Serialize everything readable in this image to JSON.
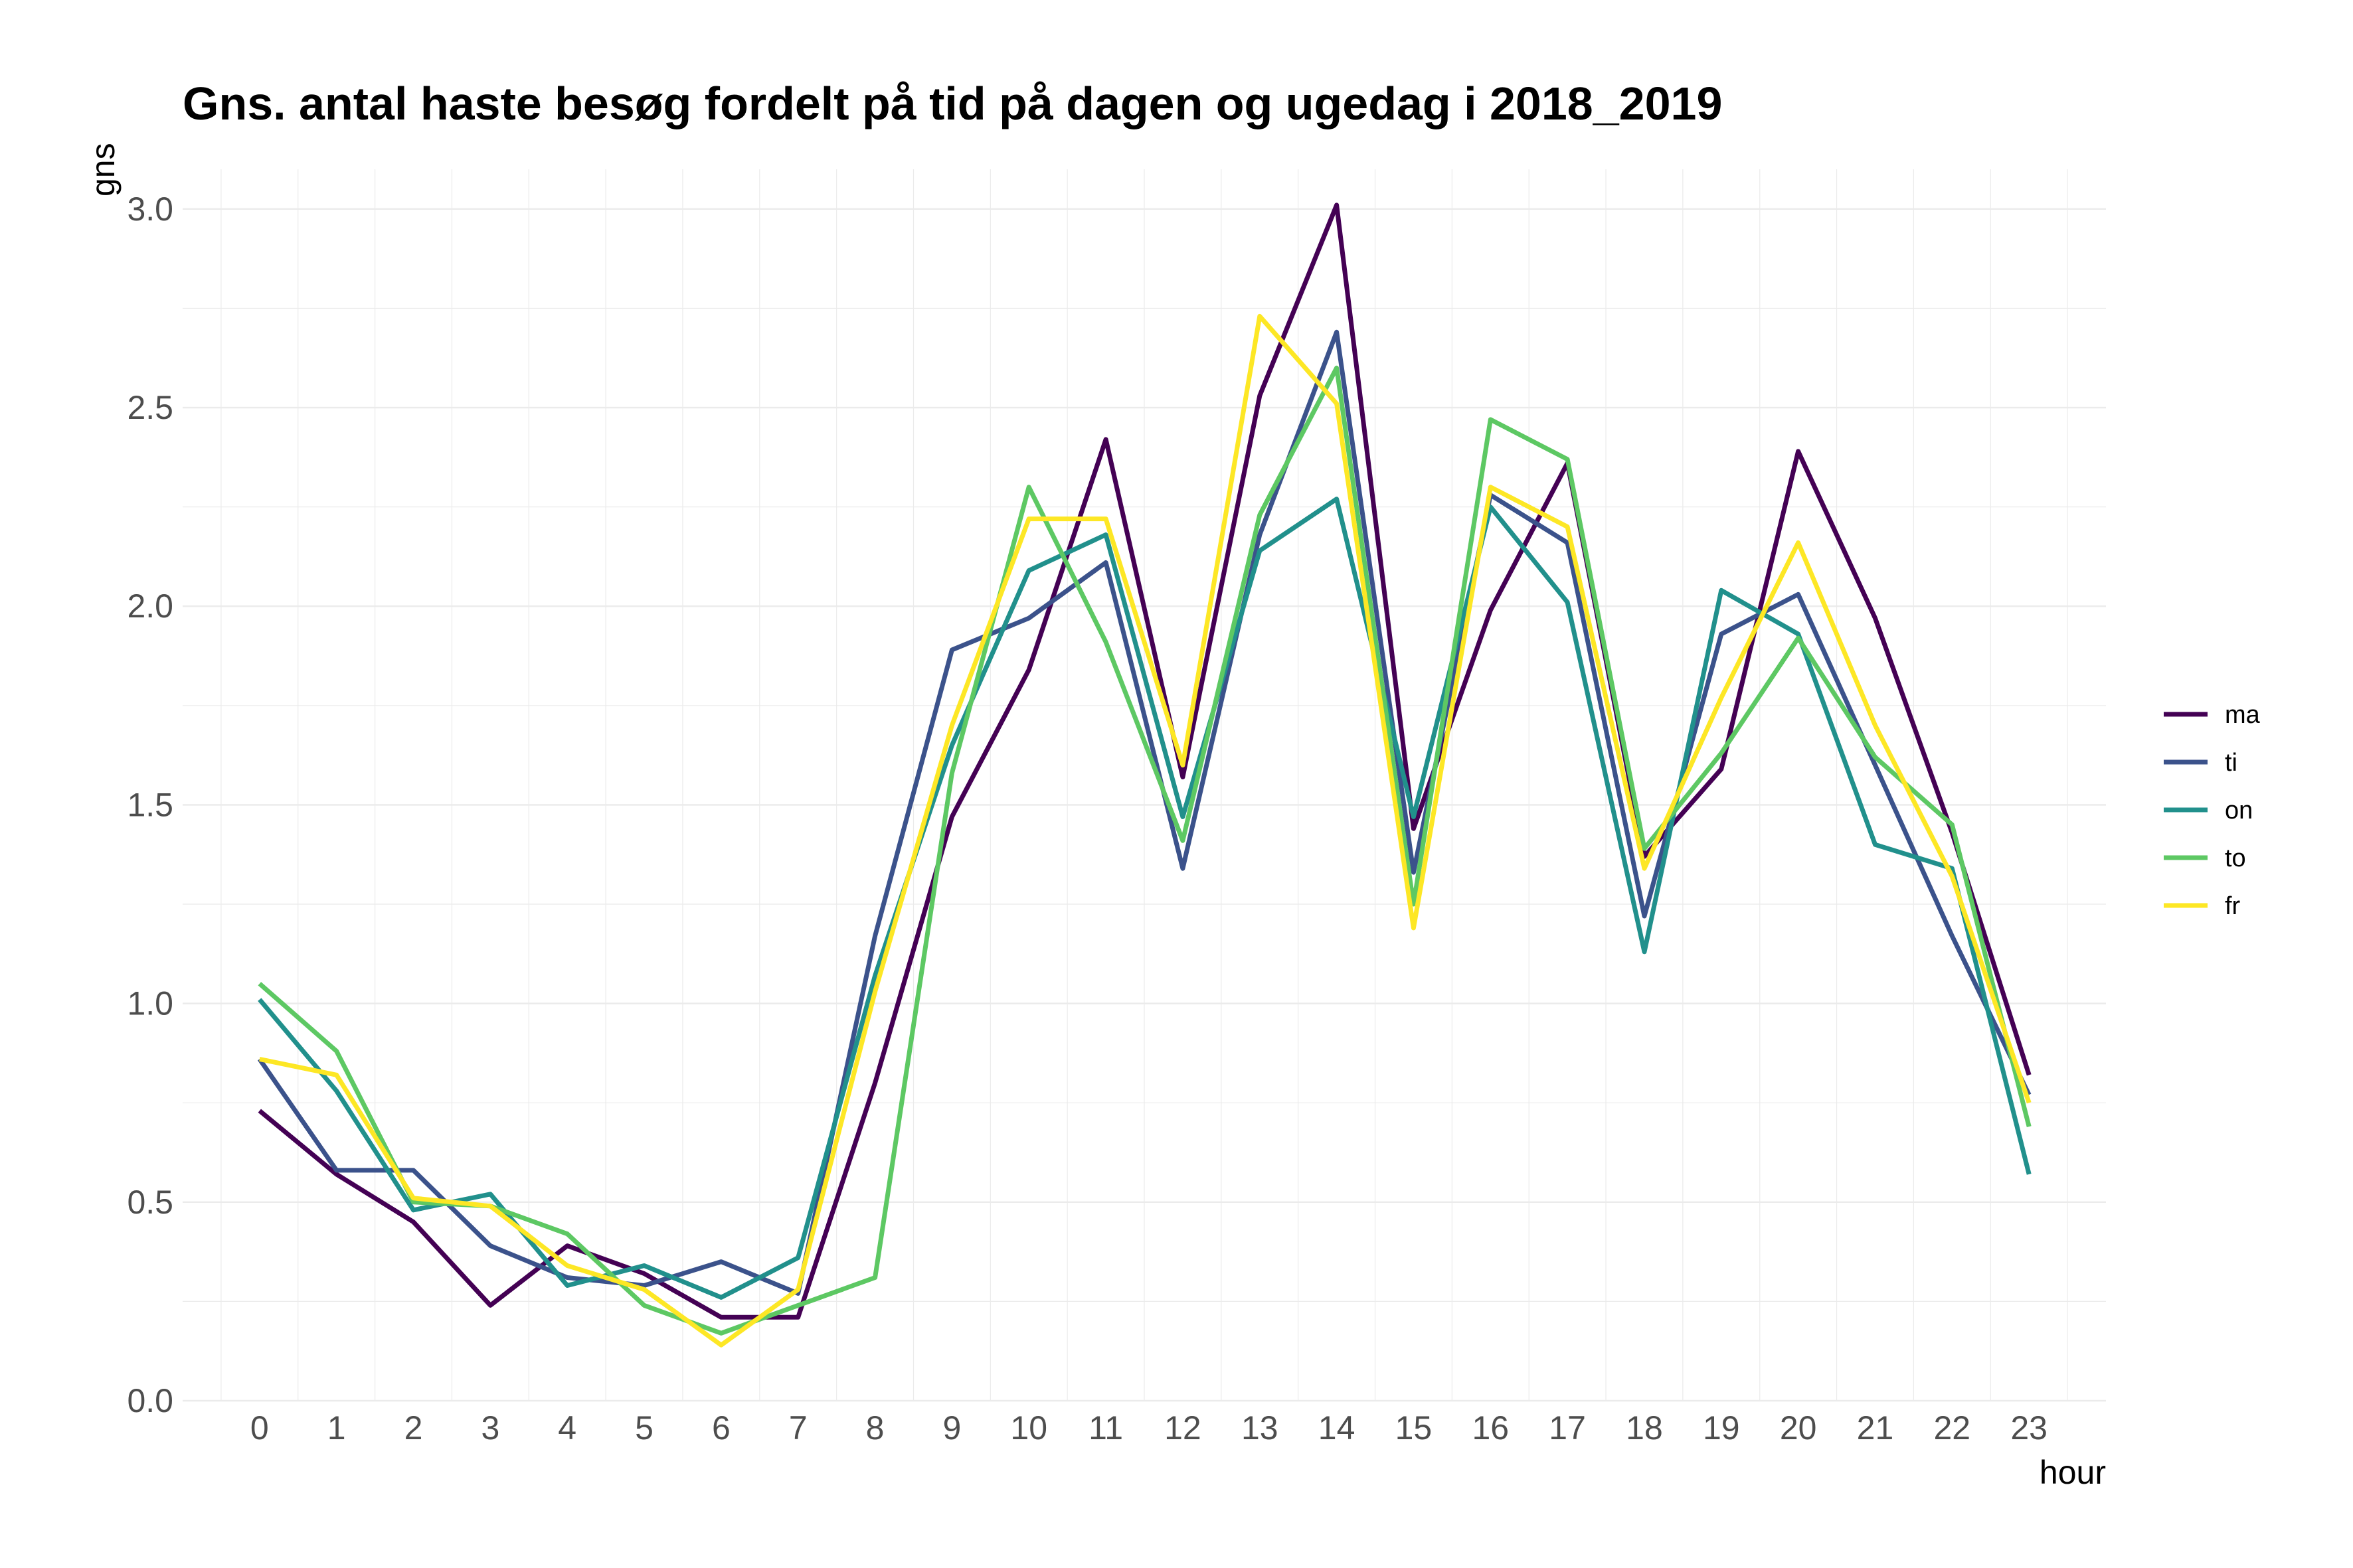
{
  "chart_data": {
    "type": "line",
    "title": "Gns. antal haste besøg fordelt på tid på dagen og ugedag i 2018_2019",
    "xlabel": "hour",
    "ylabel": "gns",
    "x": [
      0,
      1,
      2,
      3,
      4,
      5,
      6,
      7,
      8,
      9,
      10,
      11,
      12,
      13,
      14,
      15,
      16,
      17,
      18,
      19,
      20,
      21,
      22,
      23
    ],
    "xlim": [
      -1,
      24
    ],
    "ylim": [
      0,
      3.1
    ],
    "y_ticks": [
      0.0,
      0.5,
      1.0,
      1.5,
      2.0,
      2.5,
      3.0
    ],
    "y_tick_labels": [
      "0.0",
      "0.5",
      "1.0",
      "1.5",
      "2.0",
      "2.5",
      "3.0"
    ],
    "grid": true,
    "legend_position": "right",
    "series": [
      {
        "name": "ma",
        "color": "#440154",
        "values": [
          0.73,
          0.57,
          0.45,
          0.24,
          0.39,
          0.32,
          0.21,
          0.21,
          0.8,
          1.47,
          1.84,
          2.42,
          1.57,
          2.53,
          3.01,
          1.44,
          1.99,
          2.36,
          1.37,
          1.59,
          2.39,
          1.97,
          1.43,
          0.82
        ]
      },
      {
        "name": "ti",
        "color": "#3B528B",
        "values": [
          0.86,
          0.58,
          0.58,
          0.39,
          0.31,
          0.29,
          0.35,
          0.27,
          1.17,
          1.89,
          1.97,
          2.11,
          1.34,
          2.18,
          2.69,
          1.33,
          2.28,
          2.16,
          1.22,
          1.93,
          2.03,
          1.6,
          1.17,
          0.77
        ]
      },
      {
        "name": "on",
        "color": "#21908C",
        "values": [
          1.01,
          0.78,
          0.48,
          0.52,
          0.29,
          0.34,
          0.26,
          0.36,
          1.07,
          1.65,
          2.09,
          2.18,
          1.47,
          2.14,
          2.27,
          1.47,
          2.25,
          2.01,
          1.13,
          2.04,
          1.93,
          1.4,
          1.34,
          0.57
        ]
      },
      {
        "name": "to",
        "color": "#5DC863",
        "values": [
          1.05,
          0.88,
          0.5,
          0.49,
          0.42,
          0.24,
          0.17,
          0.24,
          0.31,
          1.58,
          2.3,
          1.91,
          1.41,
          2.23,
          2.6,
          1.25,
          2.47,
          2.37,
          1.39,
          1.63,
          1.92,
          1.62,
          1.45,
          0.69
        ]
      },
      {
        "name": "fr",
        "color": "#FDE725",
        "values": [
          0.86,
          0.82,
          0.51,
          0.49,
          0.34,
          0.28,
          0.14,
          0.28,
          1.03,
          1.7,
          2.22,
          2.22,
          1.6,
          2.73,
          2.51,
          1.19,
          2.3,
          2.2,
          1.34,
          1.77,
          2.16,
          1.7,
          1.32,
          0.75
        ]
      }
    ]
  }
}
